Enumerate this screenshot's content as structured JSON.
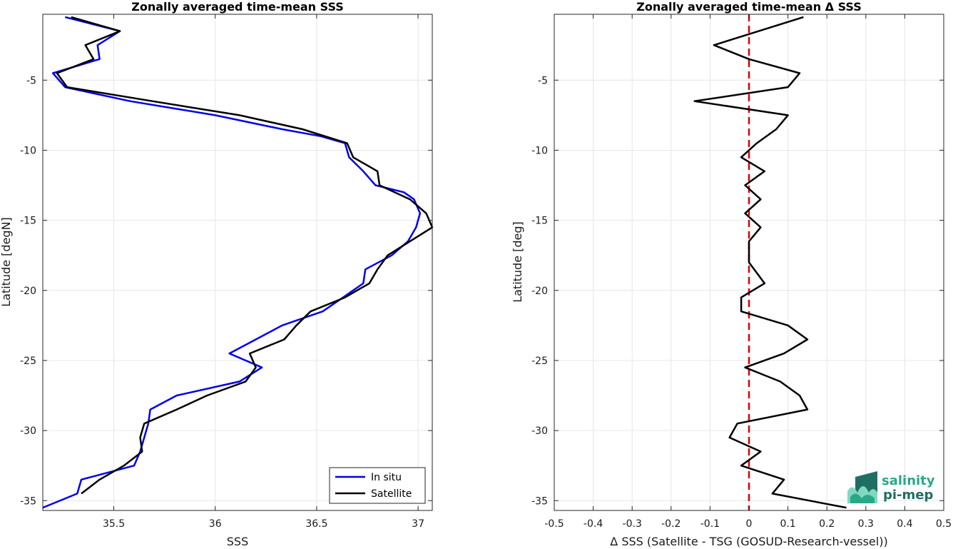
{
  "chart_data": [
    {
      "type": "line",
      "title": "Zonally averaged time-mean SSS",
      "xlabel": "SSS",
      "ylabel": "Latitude [degN]",
      "xlim": [
        35.15,
        37.07
      ],
      "ylim": [
        -35.7,
        -0.3
      ],
      "xticks": [
        35.5,
        36,
        36.5,
        37
      ],
      "xticklabels": [
        "35.5",
        "36",
        "36.5",
        "37"
      ],
      "yticks": [
        -35,
        -30,
        -25,
        -20,
        -15,
        -10,
        -5
      ],
      "yticklabels": [
        "-35",
        "-30",
        "-25",
        "-20",
        "-15",
        "-10",
        "-5"
      ],
      "grid": true,
      "legend_position": "bottom-right",
      "series": [
        {
          "name": "In situ",
          "color": "#0000ee",
          "points": [
            [
              35.26,
              -0.5
            ],
            [
              35.53,
              -1.5
            ],
            [
              35.42,
              -2.5
            ],
            [
              35.43,
              -3.5
            ],
            [
              35.2,
              -4.5
            ],
            [
              35.26,
              -5.5
            ],
            [
              35.58,
              -6.5
            ],
            [
              36.0,
              -7.5
            ],
            [
              36.33,
              -8.5
            ],
            [
              36.52,
              -9
            ],
            [
              36.64,
              -9.5
            ],
            [
              36.66,
              -10.5
            ],
            [
              36.73,
              -11.5
            ],
            [
              36.79,
              -12.5
            ],
            [
              36.93,
              -13
            ],
            [
              36.98,
              -13.5
            ],
            [
              37.01,
              -14.5
            ],
            [
              36.99,
              -15.5
            ],
            [
              36.95,
              -16.5
            ],
            [
              36.87,
              -17.5
            ],
            [
              36.74,
              -18.5
            ],
            [
              36.73,
              -19.5
            ],
            [
              36.63,
              -20.5
            ],
            [
              36.53,
              -21.5
            ],
            [
              36.33,
              -22.5
            ],
            [
              36.07,
              -24.5
            ],
            [
              36.23,
              -25.5
            ],
            [
              36.12,
              -26.5
            ],
            [
              35.81,
              -27.5
            ],
            [
              35.68,
              -28.5
            ],
            [
              35.67,
              -29.5
            ],
            [
              35.65,
              -30.5
            ],
            [
              35.63,
              -31.5
            ],
            [
              35.6,
              -32.5
            ],
            [
              35.34,
              -33.5
            ],
            [
              35.32,
              -34.5
            ],
            [
              35.15,
              -35.5
            ]
          ]
        },
        {
          "name": "Satellite",
          "color": "#000000",
          "points": [
            [
              35.29,
              -0.5
            ],
            [
              35.53,
              -1.5
            ],
            [
              35.36,
              -2.5
            ],
            [
              35.4,
              -3.5
            ],
            [
              35.22,
              -4.5
            ],
            [
              35.27,
              -5.5
            ],
            [
              35.69,
              -6.5
            ],
            [
              36.12,
              -7.5
            ],
            [
              36.43,
              -8.5
            ],
            [
              36.65,
              -9.5
            ],
            [
              36.68,
              -10.5
            ],
            [
              36.8,
              -11.5
            ],
            [
              36.81,
              -12.5
            ],
            [
              36.96,
              -13.5
            ],
            [
              37.04,
              -14.5
            ],
            [
              37.07,
              -15.5
            ],
            [
              36.96,
              -16.5
            ],
            [
              36.85,
              -17.5
            ],
            [
              36.8,
              -18.5
            ],
            [
              36.76,
              -19.5
            ],
            [
              36.64,
              -20.5
            ],
            [
              36.47,
              -21.5
            ],
            [
              36.4,
              -22.5
            ],
            [
              36.34,
              -23.5
            ],
            [
              36.17,
              -24.5
            ],
            [
              36.2,
              -25.5
            ],
            [
              36.15,
              -26.5
            ],
            [
              35.96,
              -27.5
            ],
            [
              35.81,
              -28.5
            ],
            [
              35.65,
              -29.5
            ],
            [
              35.63,
              -30.5
            ],
            [
              35.64,
              -31.5
            ],
            [
              35.55,
              -32.5
            ],
            [
              35.43,
              -33.5
            ],
            [
              35.34,
              -34.5
            ]
          ]
        }
      ]
    },
    {
      "type": "line",
      "title": "Zonally averaged time-mean Δ SSS",
      "xlabel": "Δ SSS (Satellite - TSG (GOSUD-Research-vessel))",
      "ylabel": "Latitude [deg]",
      "xlim": [
        -0.5,
        0.5
      ],
      "ylim": [
        -35.7,
        -0.3
      ],
      "xticks": [
        -0.5,
        -0.4,
        -0.3,
        -0.2,
        -0.1,
        0,
        0.1,
        0.2,
        0.3,
        0.4,
        0.5
      ],
      "xticklabels": [
        "-0.5",
        "-0.4",
        "-0.3",
        "-0.2",
        "-0.1",
        "0",
        "0.1",
        "0.2",
        "0.3",
        "0.4",
        "0.5"
      ],
      "yticks": [
        -35,
        -30,
        -25,
        -20,
        -15,
        -10,
        -5
      ],
      "yticklabels": [
        "-35",
        "-30",
        "-25",
        "-20",
        "-15",
        "-10",
        "-5"
      ],
      "grid": true,
      "zero_line": {
        "x": 0,
        "color": "#dd0000",
        "style": "dashed"
      },
      "series": [
        {
          "color": "#000000",
          "points": [
            [
              0.14,
              -0.5
            ],
            [
              -0.09,
              -2.5
            ],
            [
              0.0,
              -3.5
            ],
            [
              0.13,
              -4.5
            ],
            [
              0.1,
              -5.5
            ],
            [
              -0.14,
              -6.5
            ],
            [
              0.1,
              -7.5
            ],
            [
              0.07,
              -8.5
            ],
            [
              0.02,
              -9.5
            ],
            [
              -0.02,
              -10.5
            ],
            [
              0.04,
              -11.5
            ],
            [
              -0.01,
              -12.5
            ],
            [
              0.03,
              -13.5
            ],
            [
              -0.01,
              -14.5
            ],
            [
              0.03,
              -15.5
            ],
            [
              0.0,
              -16.5
            ],
            [
              0.0,
              -18
            ],
            [
              0.04,
              -19.5
            ],
            [
              -0.02,
              -20.5
            ],
            [
              -0.02,
              -21.5
            ],
            [
              0.1,
              -22.5
            ],
            [
              0.15,
              -23.5
            ],
            [
              0.09,
              -24.5
            ],
            [
              -0.01,
              -25.5
            ],
            [
              0.08,
              -26.5
            ],
            [
              0.13,
              -27.5
            ],
            [
              0.15,
              -28.5
            ],
            [
              -0.03,
              -29.5
            ],
            [
              -0.05,
              -30.5
            ],
            [
              0.03,
              -31.5
            ],
            [
              -0.02,
              -32.5
            ],
            [
              0.09,
              -33.5
            ],
            [
              0.06,
              -34.5
            ],
            [
              0.25,
              -35.5
            ]
          ]
        }
      ]
    }
  ],
  "legend": {
    "items": [
      "In situ",
      "Satellite"
    ]
  },
  "logo": {
    "line1": "salinity",
    "line2": "pi-mep",
    "colors": [
      "#2aa889",
      "#1f6e63",
      "#7fd9c0"
    ]
  }
}
